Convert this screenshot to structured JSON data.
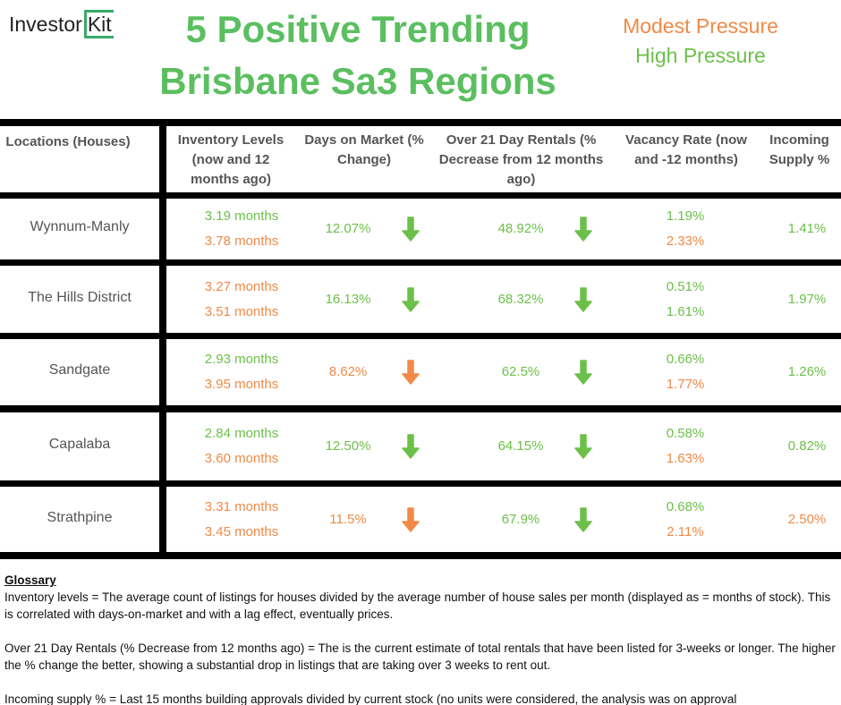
{
  "header": {
    "logo": "Investor",
    "logo_accent": "Kit",
    "title": [
      "5 Positive Trending",
      "Brisbane Sa3 Regions"
    ],
    "legend": [
      {
        "label": "Modest Pressure",
        "color": "#f08a46"
      },
      {
        "label": "High Pressure",
        "color": "#6cc04a"
      }
    ]
  },
  "table": {
    "columns": [
      "Locations (Houses)",
      "Inventory Levels (now and 12 months ago)",
      "Days on Market (% Change)",
      "Over 21 Day Rentals (% Decrease from 12 months ago)",
      "Vacancy Rate (now and -12 months)",
      "Incoming Supply %"
    ],
    "rows": [
      {
        "location": "Wynnum-Manly",
        "inventory": [
          {
            "text": "3.19 months",
            "color": "#6cc04a"
          },
          {
            "text": "3.78 months",
            "color": "#f08a46"
          }
        ],
        "days": {
          "text": "12.07%",
          "color": "#6cc04a",
          "arrow": "#6cc04a"
        },
        "over21": {
          "text": "48.92%",
          "color": "#6cc04a",
          "arrow": "#6cc04a"
        },
        "vacancy": [
          {
            "text": "1.19%",
            "color": "#6cc04a"
          },
          {
            "text": "2.33%",
            "color": "#f08a46"
          }
        ],
        "supply": {
          "text": "1.41%",
          "color": "#6cc04a"
        }
      },
      {
        "location": "The Hills District",
        "inventory": [
          {
            "text": "3.27 months",
            "color": "#f08a46"
          },
          {
            "text": "3.51 months",
            "color": "#f08a46"
          }
        ],
        "days": {
          "text": "16.13%",
          "color": "#6cc04a",
          "arrow": "#6cc04a"
        },
        "over21": {
          "text": "68.32%",
          "color": "#6cc04a",
          "arrow": "#6cc04a"
        },
        "vacancy": [
          {
            "text": "0.51%",
            "color": "#6cc04a"
          },
          {
            "text": "1.61%",
            "color": "#6cc04a"
          }
        ],
        "supply": {
          "text": "1.97%",
          "color": "#6cc04a"
        }
      },
      {
        "location": "Sandgate",
        "inventory": [
          {
            "text": "2.93 months",
            "color": "#6cc04a"
          },
          {
            "text": "3.95 months",
            "color": "#f08a46"
          }
        ],
        "days": {
          "text": "8.62%",
          "color": "#f08a46",
          "arrow": "#f08a46"
        },
        "over21": {
          "text": "62.5%",
          "color": "#6cc04a",
          "arrow": "#6cc04a"
        },
        "vacancy": [
          {
            "text": "0.66%",
            "color": "#6cc04a"
          },
          {
            "text": "1.77%",
            "color": "#f08a46"
          }
        ],
        "supply": {
          "text": "1.26%",
          "color": "#6cc04a"
        }
      },
      {
        "location": "Capalaba",
        "inventory": [
          {
            "text": "2.84 months",
            "color": "#6cc04a"
          },
          {
            "text": "3.60 months",
            "color": "#f08a46"
          }
        ],
        "days": {
          "text": "12.50%",
          "color": "#6cc04a",
          "arrow": "#6cc04a"
        },
        "over21": {
          "text": "64.15%",
          "color": "#6cc04a",
          "arrow": "#6cc04a"
        },
        "vacancy": [
          {
            "text": "0.58%",
            "color": "#6cc04a"
          },
          {
            "text": "1.63%",
            "color": "#f08a46"
          }
        ],
        "supply": {
          "text": "0.82%",
          "color": "#6cc04a"
        }
      },
      {
        "location": "Strathpine",
        "inventory": [
          {
            "text": "3.31 months",
            "color": "#f08a46"
          },
          {
            "text": "3.45 months",
            "color": "#f08a46"
          }
        ],
        "days": {
          "text": "11.5%",
          "color": "#f08a46",
          "arrow": "#f08a46"
        },
        "over21": {
          "text": "67.9%",
          "color": "#6cc04a",
          "arrow": "#6cc04a"
        },
        "vacancy": [
          {
            "text": "0.68%",
            "color": "#6cc04a"
          },
          {
            "text": "2.11%",
            "color": "#f08a46"
          }
        ],
        "supply": {
          "text": "2.50%",
          "color": "#f08a46"
        }
      }
    ]
  },
  "glossary": {
    "title": "Glossary",
    "entries": [
      {
        "term": "Inventory levels",
        "text": " = The average count of listings for houses divided by the average number of house sales per month (displayed as = months of stock). This is correlated with days-on-market and with a lag effect, eventually prices."
      },
      {
        "term": "Over 21 Day Rentals (% Decrease from 12 months ago)",
        "text": " = The is the current estimate of total rentals that have been listed for 3-weeks or longer. The higher the % change the better, showing a substantial drop in listings that are taking over 3 weeks to rent out."
      },
      {
        "term": "Incoming supply %",
        "text": " = Last 15 months building approvals divided by current stock (no units were considered, the analysis was on approval"
      }
    ]
  }
}
